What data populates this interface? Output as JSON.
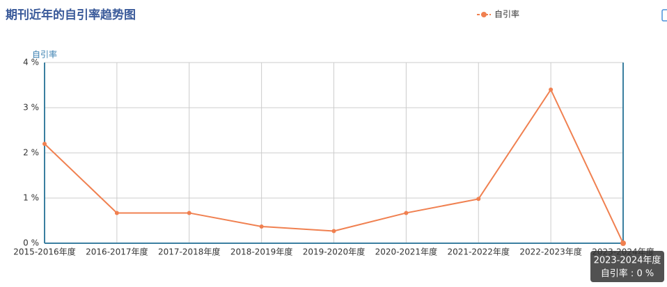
{
  "chart_data": {
    "type": "line",
    "title": "期刊近年的自引率趋势图",
    "y_label": "自引率",
    "categories": [
      "2015-2016年度",
      "2016-2017年度",
      "2017-2018年度",
      "2018-2019年度",
      "2019-2020年度",
      "2020-2021年度",
      "2021-2022年度",
      "2022-2023年度",
      "2023-2024年度"
    ],
    "series": [
      {
        "name": "自引率",
        "color": "#f08050",
        "values": [
          2.2,
          0.67,
          0.67,
          0.37,
          0.27,
          0.67,
          0.98,
          3.4,
          0
        ]
      }
    ],
    "ylim": [
      0,
      4
    ],
    "yticks": [
      {
        "value": 0,
        "label": "0 %"
      },
      {
        "value": 1,
        "label": "1 %"
      },
      {
        "value": 2,
        "label": "2 %"
      },
      {
        "value": 3,
        "label": "3 %"
      },
      {
        "value": 4,
        "label": "4 %"
      }
    ],
    "grid": true,
    "legend": "top",
    "tooltip": {
      "title": "2023-2024年度",
      "text": "自引率 : 0 %"
    }
  }
}
